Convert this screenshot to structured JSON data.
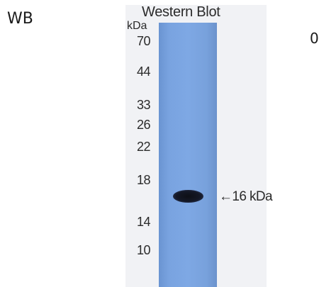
{
  "figure": {
    "assay_label": "WB",
    "panel_number": "0",
    "blot_title": "Western Blot",
    "unit_label": "kDa",
    "markers": [
      "70",
      "44",
      "33",
      "26",
      "22",
      "18",
      "14",
      "10"
    ],
    "band_annotation": "←16 kDa",
    "colors": {
      "membrane": "#7ea8e4",
      "band": "#141826",
      "background": "#ffffff"
    }
  }
}
